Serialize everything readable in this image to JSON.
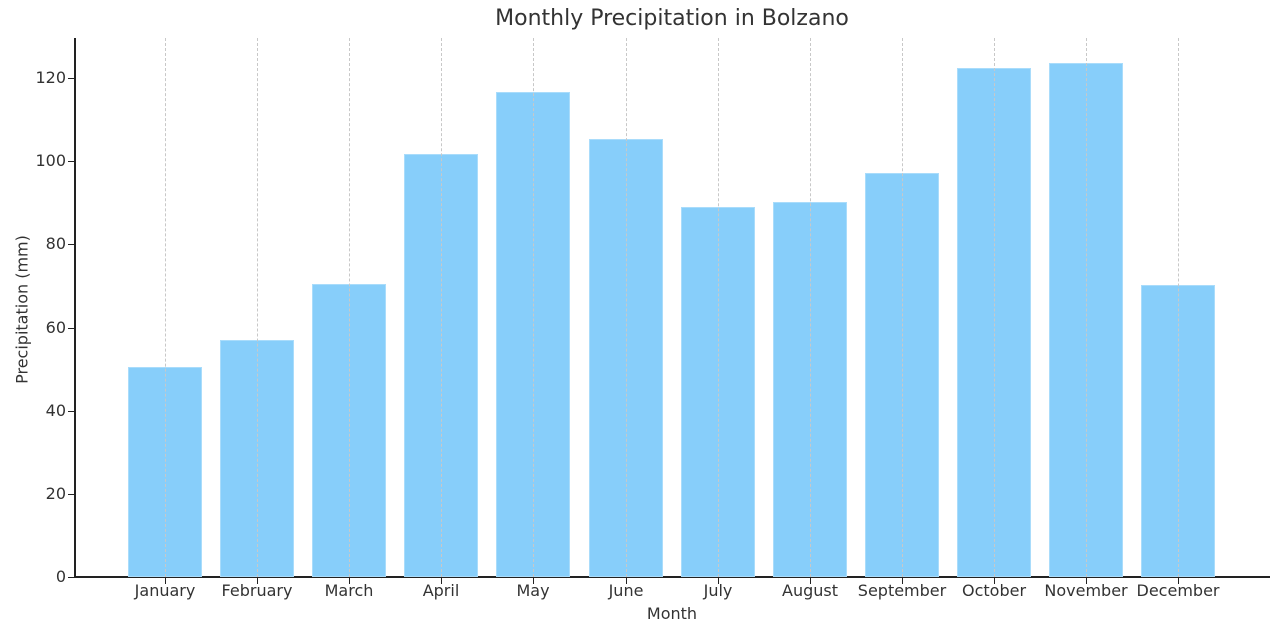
{
  "chart_data": {
    "type": "bar",
    "title": "Monthly Precipitation in Bolzano",
    "xlabel": "Month",
    "ylabel": "Precipitation (mm)",
    "categories": [
      "January",
      "February",
      "March",
      "April",
      "May",
      "June",
      "July",
      "August",
      "September",
      "October",
      "November",
      "December"
    ],
    "values": [
      50.5,
      57.0,
      70.5,
      101.7,
      116.6,
      105.3,
      89.0,
      90.2,
      97.2,
      122.4,
      123.6,
      70.2
    ],
    "ylim": [
      0,
      130
    ],
    "yticks": [
      0,
      20,
      40,
      60,
      80,
      100,
      120
    ],
    "grid": {
      "x": true,
      "y": false,
      "style": "dashed"
    },
    "bar_color": "#87cefa",
    "legend": null
  }
}
